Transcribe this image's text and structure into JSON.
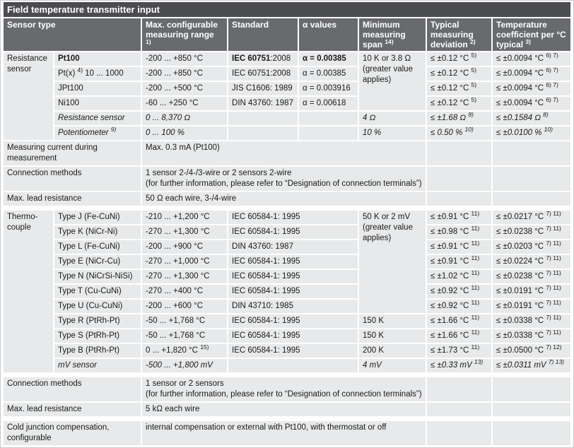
{
  "title": "Field temperature transmitter input",
  "colors": {
    "title_bar_bg": "#4b4c50",
    "header_bg": "#686a6e",
    "cell_bg": "#e8e9ea",
    "header_text": "#ffffff",
    "body_text": "#1a1a1a"
  },
  "header": [
    {
      "text": "Sensor type",
      "colspan": 2,
      "name": "col-sensor-type"
    },
    {
      "text": "Max. configurable measuring range\n^{1)}",
      "name": "col-max-configurable-range"
    },
    {
      "text": "Standard",
      "name": "col-standard"
    },
    {
      "text": "α values",
      "name": "col-alpha-values"
    },
    {
      "text": "Minimum measuring span ^{14)}",
      "name": "col-minimum-measuring-span"
    },
    {
      "text": "Typical measuring deviation ^{2)}",
      "name": "col-typical-measuring-deviation"
    },
    {
      "text": "Temperature coefficient per °C typical ^{3)}",
      "name": "col-temperature-coefficient"
    }
  ],
  "sections": [
    {
      "name": "resistance-sensor",
      "gap": false,
      "rows": [
        {
          "cells": [
            {
              "t": "Resistance sensor",
              "rs": 6,
              "n": "sensor-group-label"
            },
            {
              "t": "**Pt100**",
              "n": "sensor-name"
            },
            {
              "t": "-200 ... +850 °C",
              "n": "range"
            },
            {
              "t": "**IEC 60751**:2008",
              "n": "standard"
            },
            {
              "t": "**α = 0.00385**",
              "n": "alpha"
            },
            {
              "t": "10 K or 3.8 Ω (greater value applies)",
              "rs": 4,
              "n": "span"
            },
            {
              "t": "≤ ±0.12 °C ^{5)}",
              "n": "deviation"
            },
            {
              "t": "≤ ±0.0094 °C ^{6) 7)}",
              "n": "coefficient"
            }
          ]
        },
        {
          "cells": [
            {
              "t": "Pt(x) ^{4)} 10 ... 1000",
              "n": "sensor-name"
            },
            {
              "t": "-200 ... +850 °C",
              "n": "range"
            },
            {
              "t": "IEC 60751:2008",
              "n": "standard"
            },
            {
              "t": "α = 0.00385",
              "n": "alpha"
            },
            {
              "t": "≤ ±0.12 °C ^{5)}",
              "n": "deviation"
            },
            {
              "t": "≤ ±0.0094 °C ^{6) 7)}",
              "n": "coefficient"
            }
          ]
        },
        {
          "cells": [
            {
              "t": "JPt100",
              "n": "sensor-name"
            },
            {
              "t": "-200 ... +500 °C",
              "n": "range"
            },
            {
              "t": "JIS C1606: 1989",
              "n": "standard"
            },
            {
              "t": "α = 0.003916",
              "n": "alpha"
            },
            {
              "t": "≤ ±0.12 °C ^{5)}",
              "n": "deviation"
            },
            {
              "t": "≤ ±0.0094 °C ^{6) 7)}",
              "n": "coefficient"
            }
          ]
        },
        {
          "cells": [
            {
              "t": "Ni100",
              "n": "sensor-name"
            },
            {
              "t": "-60 ... +250 °C",
              "n": "range"
            },
            {
              "t": "DIN 43760: 1987",
              "n": "standard"
            },
            {
              "t": "α = 0.00618",
              "n": "alpha"
            },
            {
              "t": "≤ ±0.12 °C ^{5)}",
              "n": "deviation"
            },
            {
              "t": "≤ ±0.0094 °C ^{6) 7)}",
              "n": "coefficient"
            }
          ]
        },
        {
          "i": true,
          "cells": [
            {
              "t": "Resistance sensor",
              "n": "sensor-name"
            },
            {
              "t": "0 ... 8,370 Ω",
              "n": "range"
            },
            {
              "t": "",
              "n": "standard"
            },
            {
              "t": "",
              "n": "alpha"
            },
            {
              "t": "4 Ω",
              "n": "span"
            },
            {
              "t": "≤ ±1.68 Ω ^{8)}",
              "n": "deviation"
            },
            {
              "t": "≤ ±0.1584 Ω ^{8)}",
              "n": "coefficient"
            }
          ]
        },
        {
          "i": true,
          "cells": [
            {
              "t": "Potentiometer ^{9)}",
              "n": "sensor-name"
            },
            {
              "t": "0 ... 100 %",
              "n": "range"
            },
            {
              "t": "",
              "n": "standard"
            },
            {
              "t": "",
              "n": "alpha"
            },
            {
              "t": "10 %",
              "n": "span"
            },
            {
              "t": "≤ 0.50 % ^{10)}",
              "n": "deviation"
            },
            {
              "t": "≤ ±0.0100 % ^{10)}",
              "n": "coefficient"
            }
          ]
        }
      ]
    },
    {
      "name": "resistance-general",
      "gap": false,
      "rows": [
        {
          "cells": [
            {
              "t": "Measuring current during measurement",
              "cs": 2,
              "n": "row-label"
            },
            {
              "t": "Max. 0.3 mA (Pt100)",
              "cs": 4,
              "n": "value"
            },
            {
              "t": "",
              "n": "cell"
            },
            {
              "t": "",
              "n": "cell"
            }
          ]
        },
        {
          "cells": [
            {
              "t": "Connection methods",
              "cs": 2,
              "n": "row-label"
            },
            {
              "t": "1 sensor 2-/4-/3-wire or 2 sensors 2-wire\n(for further information, please refer to “Designation of connection terminals”)",
              "cs": 4,
              "n": "value"
            },
            {
              "t": "",
              "n": "cell"
            },
            {
              "t": "",
              "n": "cell"
            }
          ]
        },
        {
          "cells": [
            {
              "t": "Max. lead resistance",
              "cs": 2,
              "n": "row-label"
            },
            {
              "t": "50 Ω each wire, 3-/4-wire",
              "cs": 4,
              "n": "value"
            },
            {
              "t": "",
              "n": "cell"
            },
            {
              "t": "",
              "n": "cell"
            }
          ]
        }
      ]
    },
    {
      "name": "thermocouple",
      "gap": true,
      "rows": [
        {
          "cells": [
            {
              "t": "Thermo-\ncouple",
              "rs": 11,
              "n": "sensor-group-label"
            },
            {
              "t": "Type J (Fe-CuNi)",
              "n": "sensor-name"
            },
            {
              "t": "-210 ... +1,200 °C",
              "n": "range"
            },
            {
              "t": "IEC 60584-1: 1995",
              "cs": 2,
              "n": "standard"
            },
            {
              "t": "50 K or 2 mV (greater value applies)",
              "rs": 7,
              "n": "span"
            },
            {
              "t": "≤ ±0.91 °C ^{11)}",
              "n": "deviation"
            },
            {
              "t": "≤ ±0.0217 °C ^{7) 11)}",
              "n": "coefficient"
            }
          ]
        },
        {
          "cells": [
            {
              "t": "Type K (NiCr-Ni)",
              "n": "sensor-name"
            },
            {
              "t": "-270 ... +1,300 °C",
              "n": "range"
            },
            {
              "t": "IEC 60584-1: 1995",
              "cs": 2,
              "n": "standard"
            },
            {
              "t": "≤ ±0.98 °C ^{11)}",
              "n": "deviation"
            },
            {
              "t": "≤ ±0.0238 °C ^{7) 11)}",
              "n": "coefficient"
            }
          ]
        },
        {
          "cells": [
            {
              "t": "Type L (Fe-CuNi)",
              "n": "sensor-name"
            },
            {
              "t": "-200 ... +900 °C",
              "n": "range"
            },
            {
              "t": "DIN 43760: 1987",
              "cs": 2,
              "n": "standard"
            },
            {
              "t": "≤ ±0.91 °C ^{11)}",
              "n": "deviation"
            },
            {
              "t": "≤ ±0.0203 °C ^{7) 11)}",
              "n": "coefficient"
            }
          ]
        },
        {
          "cells": [
            {
              "t": "Type E (NiCr-Cu)",
              "n": "sensor-name"
            },
            {
              "t": "-270 ... +1,000 °C",
              "n": "range"
            },
            {
              "t": "IEC 60584-1: 1995",
              "cs": 2,
              "n": "standard"
            },
            {
              "t": "≤ ±0.91 °C ^{11)}",
              "n": "deviation"
            },
            {
              "t": "≤ ±0.0224 °C ^{7) 11)}",
              "n": "coefficient"
            }
          ]
        },
        {
          "cells": [
            {
              "t": "Type N (NiCrSi-NiSi)",
              "n": "sensor-name"
            },
            {
              "t": "-270 ... +1,300 °C",
              "n": "range"
            },
            {
              "t": "IEC 60584-1: 1995",
              "cs": 2,
              "n": "standard"
            },
            {
              "t": "≤ ±1.02 °C ^{11)}",
              "n": "deviation"
            },
            {
              "t": "≤ ±0.0238 °C ^{7) 11)}",
              "n": "coefficient"
            }
          ]
        },
        {
          "cells": [
            {
              "t": "Type T (Cu-CuNi)",
              "n": "sensor-name"
            },
            {
              "t": "-270 ... +400 °C",
              "n": "range"
            },
            {
              "t": "IEC 60584-1: 1995",
              "cs": 2,
              "n": "standard"
            },
            {
              "t": "≤ ±0.92 °C ^{11)}",
              "n": "deviation"
            },
            {
              "t": "≤ ±0.0191 °C ^{7) 11)}",
              "n": "coefficient"
            }
          ]
        },
        {
          "cells": [
            {
              "t": "Type U (Cu-CuNi)",
              "n": "sensor-name"
            },
            {
              "t": "-200 ... +600 °C",
              "n": "range"
            },
            {
              "t": "DIN 43710: 1985",
              "cs": 2,
              "n": "standard"
            },
            {
              "t": "≤ ±0.92 °C ^{11)}",
              "n": "deviation"
            },
            {
              "t": "≤ ±0.0191 °C ^{7) 11)}",
              "n": "coefficient"
            }
          ]
        },
        {
          "cells": [
            {
              "t": "Type R (PtRh-Pt)",
              "n": "sensor-name"
            },
            {
              "t": "-50 ... +1,768 °C",
              "n": "range"
            },
            {
              "t": "IEC 60584-1: 1995",
              "cs": 2,
              "n": "standard"
            },
            {
              "t": "150 K",
              "n": "span"
            },
            {
              "t": "≤ ±1.66 °C ^{11)}",
              "n": "deviation"
            },
            {
              "t": "≤ ±0.0338 °C ^{7) 11)}",
              "n": "coefficient"
            }
          ]
        },
        {
          "cells": [
            {
              "t": "Type S (PtRh-Pt)",
              "n": "sensor-name"
            },
            {
              "t": "-50 ... +1,768 °C",
              "n": "range"
            },
            {
              "t": "IEC 60584-1: 1995",
              "cs": 2,
              "n": "standard"
            },
            {
              "t": "150 K",
              "n": "span"
            },
            {
              "t": "≤ ±1.66 °C ^{11)}",
              "n": "deviation"
            },
            {
              "t": "≤ ±0.0338 °C ^{7) 11)}",
              "n": "coefficient"
            }
          ]
        },
        {
          "cells": [
            {
              "t": "Type B (PtRh-Pt)",
              "n": "sensor-name"
            },
            {
              "t": "0 ... +1,820 °C ^{15)}",
              "n": "range"
            },
            {
              "t": "IEC 60584-1: 1995",
              "cs": 2,
              "n": "standard"
            },
            {
              "t": "200 K",
              "n": "span"
            },
            {
              "t": "≤ ±1.73 °C ^{11)}",
              "n": "deviation"
            },
            {
              "t": "≤ ±0.0500 °C ^{7) 12)}",
              "n": "coefficient"
            }
          ]
        },
        {
          "i": true,
          "cells": [
            {
              "t": "mV sensor",
              "n": "sensor-name"
            },
            {
              "t": "-500 ... +1,800 mV",
              "n": "range"
            },
            {
              "t": "",
              "cs": 2,
              "n": "standard"
            },
            {
              "t": "4 mV",
              "n": "span"
            },
            {
              "t": "≤ ±0.33 mV ^{13)}",
              "n": "deviation"
            },
            {
              "t": "≤ ±0.0311 mV ^{7) 13)}",
              "n": "coefficient"
            }
          ]
        }
      ]
    },
    {
      "name": "thermocouple-general",
      "gap": true,
      "rows": [
        {
          "cells": [
            {
              "t": "Connection methods",
              "cs": 2,
              "n": "row-label"
            },
            {
              "t": "1 sensor or 2 sensors\n(for further information, please refer to “Designation of connection terminals”)",
              "cs": 4,
              "n": "value"
            },
            {
              "t": "",
              "n": "cell"
            },
            {
              "t": "",
              "n": "cell"
            }
          ]
        },
        {
          "cells": [
            {
              "t": "Max. lead resistance",
              "cs": 2,
              "n": "row-label"
            },
            {
              "t": "5 kΩ each wire",
              "cs": 4,
              "n": "value"
            },
            {
              "t": "",
              "n": "cell"
            },
            {
              "t": "",
              "n": "cell"
            }
          ]
        }
      ]
    },
    {
      "name": "cold-junction",
      "gap": true,
      "rows": [
        {
          "cells": [
            {
              "t": "Cold junction compensation, configurable",
              "cs": 2,
              "n": "row-label"
            },
            {
              "t": "internal compensation or external with Pt100, with thermostat or off",
              "cs": 4,
              "n": "value"
            },
            {
              "t": "",
              "n": "cell"
            },
            {
              "t": "",
              "n": "cell"
            }
          ]
        }
      ]
    }
  ]
}
